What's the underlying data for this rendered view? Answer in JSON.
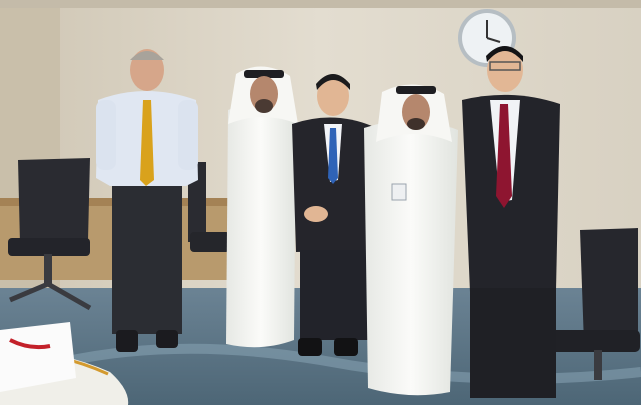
{
  "scene": {
    "kind": "photograph",
    "subject": "group-portrait",
    "people_count": 5
  },
  "colors": {
    "wall": "#ddd6c7",
    "carpet": "#5d7788",
    "white_robe": "#f4f5f2",
    "dark_suit": "#25252b",
    "shirt_blue": "#dfe6f1",
    "tie_gold": "#d9a21c",
    "tie_blue": "#2f63b7",
    "tie_red": "#8e1530",
    "chair": "#2a2b31",
    "clock_face": "#eef2f4"
  },
  "icons": [
    "wall-clock-icon"
  ]
}
